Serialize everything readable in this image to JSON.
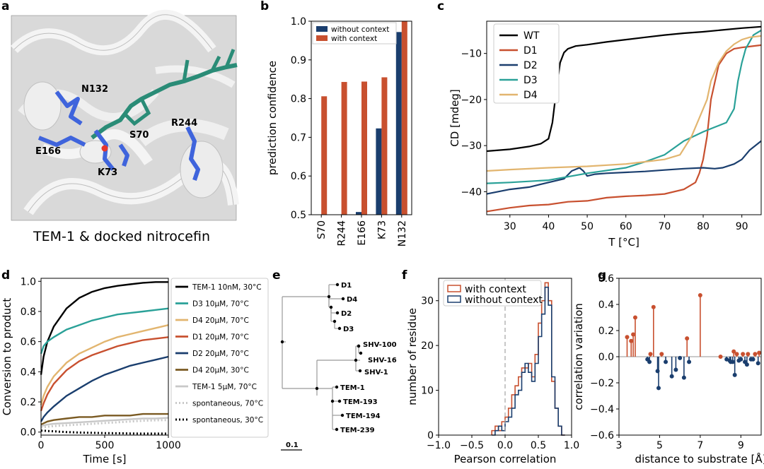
{
  "colors": {
    "blue": "#1a3e6e",
    "red": "#c8502f",
    "teal": "#2aa198",
    "tan": "#e2b56f",
    "brown": "#7a5a22",
    "lightgray": "#c8c8c8",
    "black": "#000000",
    "structure_blue": "#3f64dc",
    "structure_teal": "#2a8c77"
  },
  "panels": {
    "a": {
      "label": "a",
      "caption": "TEM-1 & docked nitrocefin",
      "residue_labels": [
        "N132",
        "R244",
        "S70",
        "E166",
        "K73"
      ],
      "image_description": "protein-structure-render"
    },
    "b": {
      "label": "b"
    },
    "c": {
      "label": "c"
    },
    "d": {
      "label": "d"
    },
    "e": {
      "label": "e"
    },
    "f": {
      "label": "f"
    },
    "g": {
      "label": "g"
    }
  },
  "chart_data": [
    {
      "panel": "b",
      "type": "bar",
      "categories": [
        "S70",
        "R244",
        "E166",
        "K73",
        "N132"
      ],
      "series": [
        {
          "name": "without context",
          "color": "#1a3e6e",
          "values": [
            0.5,
            0.5,
            0.507,
            0.723,
            0.972
          ]
        },
        {
          "name": "with context",
          "color": "#c8502f",
          "values": [
            0.806,
            0.843,
            0.844,
            0.855,
            1.0
          ]
        }
      ],
      "xlabel": "",
      "ylabel": "prediction confidence",
      "ylim": [
        0.5,
        1.0
      ],
      "yticks": [
        0.5,
        0.6,
        0.7,
        0.8,
        0.9,
        1.0
      ],
      "yticklabels": [
        "0.5",
        "0.6",
        "0.7",
        "0.8",
        "0.9",
        "1.0"
      ],
      "legend": "top-left"
    },
    {
      "panel": "c",
      "type": "line",
      "xlabel": "T [°C]",
      "ylabel": "CD [mdeg]",
      "xlim": [
        24,
        95
      ],
      "ylim": [
        -45,
        -3
      ],
      "xticks": [
        30,
        40,
        50,
        60,
        70,
        80,
        90
      ],
      "yticks": [
        -40,
        -30,
        -20,
        -10
      ],
      "legend": "top-left",
      "series": [
        {
          "name": "WT",
          "color": "#000000",
          "x": [
            24,
            30,
            35,
            38,
            40,
            41,
            42,
            43,
            44,
            45,
            47,
            50,
            55,
            60,
            65,
            70,
            75,
            80,
            85,
            90,
            95
          ],
          "y": [
            -31.2,
            -30.8,
            -30.2,
            -29.6,
            -28.5,
            -25,
            -18,
            -12,
            -9.8,
            -9,
            -8.4,
            -8.1,
            -7.5,
            -7,
            -6.5,
            -6,
            -5.6,
            -5.3,
            -4.9,
            -4.5,
            -4.2
          ]
        },
        {
          "name": "D1",
          "color": "#c8502f",
          "x": [
            24,
            30,
            35,
            40,
            45,
            50,
            55,
            60,
            65,
            70,
            75,
            78,
            79,
            80,
            81,
            82,
            84,
            86,
            88,
            90,
            92,
            95
          ],
          "y": [
            -44.3,
            -43.5,
            -43,
            -42.8,
            -42.2,
            -42,
            -41.3,
            -41,
            -40.8,
            -40.5,
            -39.5,
            -38,
            -36,
            -33,
            -28,
            -20,
            -12.5,
            -10,
            -9,
            -8.7,
            -8.5,
            -8.2
          ]
        },
        {
          "name": "D2",
          "color": "#1a3e6e",
          "x": [
            24,
            30,
            35,
            40,
            44,
            46,
            48,
            49,
            50,
            52,
            55,
            60,
            65,
            70,
            75,
            80,
            83,
            85,
            88,
            90,
            92,
            95
          ],
          "y": [
            -40.5,
            -39.5,
            -39,
            -38,
            -37.2,
            -35.5,
            -34.8,
            -35.5,
            -36.6,
            -36.2,
            -36,
            -35.8,
            -35.6,
            -35.3,
            -35,
            -34.8,
            -35,
            -34.8,
            -34,
            -33,
            -31,
            -29
          ]
        },
        {
          "name": "D3",
          "color": "#2aa198",
          "x": [
            24,
            30,
            40,
            50,
            60,
            65,
            70,
            75,
            80,
            83,
            86,
            88,
            89,
            90,
            91,
            93,
            95
          ],
          "y": [
            -38.2,
            -38,
            -37.5,
            -36,
            -34.8,
            -33.5,
            -32,
            -29,
            -27,
            -26,
            -25,
            -22,
            -16,
            -12,
            -9,
            -6,
            -5
          ]
        },
        {
          "name": "D4",
          "color": "#e2b56f",
          "x": [
            24,
            30,
            40,
            50,
            60,
            65,
            70,
            74,
            77,
            79,
            81,
            82,
            84,
            86,
            88,
            90,
            92,
            95
          ],
          "y": [
            -35.5,
            -35.2,
            -34.8,
            -34.5,
            -34,
            -33.5,
            -33,
            -32,
            -28,
            -24,
            -20,
            -16,
            -12,
            -9.5,
            -8,
            -7,
            -6.5,
            -6.2
          ]
        }
      ]
    },
    {
      "panel": "d",
      "type": "line",
      "xlabel": "Time [s]",
      "ylabel": "Conversion to product",
      "xlim": [
        0,
        1000
      ],
      "ylim": [
        -0.02,
        1.02
      ],
      "xticks": [
        0,
        500,
        1000
      ],
      "yticks": [
        0.0,
        0.2,
        0.4,
        0.6,
        0.8,
        1.0
      ],
      "yticklabels": [
        "0.0",
        "0.2",
        "0.4",
        "0.6",
        "0.8",
        "1.0"
      ],
      "legend": "right-outside",
      "series": [
        {
          "name": "TEM-1 10nM, 30°C",
          "color": "#000000",
          "style": "solid",
          "x": [
            0,
            20,
            50,
            100,
            200,
            300,
            400,
            500,
            600,
            700,
            800,
            900,
            1000
          ],
          "y": [
            0.38,
            0.5,
            0.6,
            0.7,
            0.82,
            0.89,
            0.93,
            0.955,
            0.97,
            0.98,
            0.99,
            0.995,
            0.995
          ]
        },
        {
          "name": "D3 10μM, 70°C",
          "color": "#2aa198",
          "style": "solid",
          "x": [
            0,
            20,
            50,
            100,
            200,
            300,
            400,
            500,
            600,
            700,
            800,
            900,
            1000
          ],
          "y": [
            0.52,
            0.57,
            0.6,
            0.63,
            0.68,
            0.71,
            0.74,
            0.76,
            0.78,
            0.79,
            0.8,
            0.81,
            0.82
          ]
        },
        {
          "name": "D4 20μM, 70°C",
          "color": "#e2b56f",
          "style": "solid",
          "x": [
            0,
            20,
            50,
            100,
            200,
            300,
            400,
            500,
            600,
            700,
            800,
            900,
            1000
          ],
          "y": [
            0.18,
            0.24,
            0.3,
            0.37,
            0.46,
            0.52,
            0.56,
            0.6,
            0.63,
            0.65,
            0.67,
            0.69,
            0.71
          ]
        },
        {
          "name": "D1 20μM, 70°C",
          "color": "#c8502f",
          "style": "solid",
          "x": [
            0,
            20,
            50,
            100,
            200,
            300,
            400,
            500,
            600,
            700,
            800,
            900,
            1000
          ],
          "y": [
            0.14,
            0.19,
            0.25,
            0.32,
            0.41,
            0.47,
            0.51,
            0.54,
            0.57,
            0.59,
            0.61,
            0.62,
            0.63
          ]
        },
        {
          "name": "D2 20μM, 70°C",
          "color": "#1a3e6e",
          "style": "solid",
          "x": [
            0,
            20,
            50,
            100,
            200,
            300,
            400,
            500,
            600,
            700,
            800,
            900,
            1000
          ],
          "y": [
            0.07,
            0.1,
            0.13,
            0.17,
            0.24,
            0.29,
            0.34,
            0.38,
            0.41,
            0.44,
            0.46,
            0.48,
            0.5
          ]
        },
        {
          "name": "D4 20μM, 30°C",
          "color": "#7a5a22",
          "style": "solid",
          "x": [
            0,
            50,
            100,
            200,
            300,
            400,
            500,
            600,
            700,
            800,
            900,
            1000
          ],
          "y": [
            0.05,
            0.07,
            0.08,
            0.09,
            0.1,
            0.1,
            0.11,
            0.11,
            0.11,
            0.12,
            0.12,
            0.12
          ]
        },
        {
          "name": "TEM-1 5μM, 70°C",
          "color": "#c8c8c8",
          "style": "solid",
          "x": [
            0,
            50,
            100,
            200,
            300,
            400,
            500,
            600,
            700,
            800,
            900,
            1000
          ],
          "y": [
            0.04,
            0.05,
            0.055,
            0.06,
            0.065,
            0.07,
            0.075,
            0.08,
            0.085,
            0.09,
            0.09,
            0.095
          ]
        },
        {
          "name": "spontaneous, 70°C",
          "color": "#c8c8c8",
          "style": "dotted",
          "x": [
            0,
            100,
            200,
            300,
            400,
            500,
            600,
            700,
            800,
            900,
            1000
          ],
          "y": [
            0.03,
            0.04,
            0.045,
            0.05,
            0.055,
            0.06,
            0.065,
            0.07,
            0.075,
            0.078,
            0.08
          ]
        },
        {
          "name": "spontaneous, 30°C",
          "color": "#000000",
          "style": "dotted",
          "x": [
            0,
            100,
            200,
            300,
            400,
            500,
            600,
            700,
            800,
            900,
            1000
          ],
          "y": [
            0.01,
            0.005,
            0.0,
            -0.003,
            -0.005,
            -0.007,
            -0.008,
            -0.009,
            -0.01,
            -0.01,
            -0.01
          ]
        }
      ]
    },
    {
      "panel": "e",
      "type": "tree",
      "leaves": [
        "D1",
        "D4",
        "D2",
        "D3",
        "SHV-100",
        "SHV-16",
        "SHV-1",
        "TEM-1",
        "TEM-193",
        "TEM-194",
        "TEM-239"
      ],
      "scale_label": "0.1"
    },
    {
      "panel": "f",
      "type": "histogram",
      "xlabel": "Pearson correlation",
      "ylabel": "number of residue",
      "xlim": [
        -1.0,
        1.0
      ],
      "ylim": [
        0,
        35
      ],
      "xticks": [
        -1.0,
        -0.5,
        0.0,
        0.5,
        1.0
      ],
      "xticklabels": [
        "−1.0",
        "−0.5",
        "0.0",
        "0.5",
        "1.0"
      ],
      "yticks": [
        0,
        10,
        20,
        30
      ],
      "legend": "top-left",
      "bin_edges": [
        -0.2,
        -0.15,
        -0.1,
        -0.05,
        0.0,
        0.05,
        0.1,
        0.15,
        0.2,
        0.25,
        0.3,
        0.35,
        0.4,
        0.45,
        0.5,
        0.55,
        0.6,
        0.65,
        0.7,
        0.75,
        0.8,
        0.85,
        0.9
      ],
      "series": [
        {
          "name": "with context",
          "color": "#c8502f",
          "counts": [
            1,
            2,
            1,
            3,
            4,
            6,
            9,
            11,
            13,
            15,
            15,
            16,
            13,
            18,
            25,
            30,
            34,
            30,
            12,
            6,
            2,
            0
          ]
        },
        {
          "name": "without context",
          "color": "#1a3e6e",
          "counts": [
            0,
            1,
            2,
            1,
            3,
            4,
            6,
            9,
            10,
            14,
            16,
            14,
            12,
            16,
            22,
            27,
            33,
            29,
            13,
            6,
            2,
            0
          ]
        }
      ],
      "vline": 0.0
    },
    {
      "panel": "g",
      "type": "stem",
      "xlabel": "distance to substrate [Å]",
      "ylabel": "correlation variation",
      "xlim": [
        3,
        10
      ],
      "ylim": [
        -0.6,
        0.6
      ],
      "xticks": [
        3,
        5,
        7,
        9
      ],
      "yticks": [
        -0.6,
        -0.4,
        -0.2,
        0.0,
        0.2,
        0.4,
        0.6
      ],
      "yticklabels": [
        "−0.6",
        "−0.4",
        "−0.2",
        "0.0",
        "0.2",
        "0.4",
        "0.6"
      ],
      "points": [
        {
          "x": 3.4,
          "y": 0.15
        },
        {
          "x": 3.6,
          "y": 0.12
        },
        {
          "x": 3.7,
          "y": 0.17
        },
        {
          "x": 3.8,
          "y": 0.3
        },
        {
          "x": 4.4,
          "y": -0.02
        },
        {
          "x": 4.5,
          "y": -0.04
        },
        {
          "x": 4.55,
          "y": 0.02
        },
        {
          "x": 4.7,
          "y": 0.38
        },
        {
          "x": 4.9,
          "y": -0.11
        },
        {
          "x": 4.95,
          "y": -0.24
        },
        {
          "x": 5.1,
          "y": 0.02
        },
        {
          "x": 5.3,
          "y": -0.04
        },
        {
          "x": 5.6,
          "y": -0.15
        },
        {
          "x": 5.8,
          "y": -0.1
        },
        {
          "x": 6.0,
          "y": -0.01
        },
        {
          "x": 6.2,
          "y": -0.16
        },
        {
          "x": 6.35,
          "y": 0.14
        },
        {
          "x": 6.45,
          "y": -0.04
        },
        {
          "x": 7.0,
          "y": 0.47
        },
        {
          "x": 8.0,
          "y": 0.0
        },
        {
          "x": 8.3,
          "y": -0.02
        },
        {
          "x": 8.45,
          "y": -0.03
        },
        {
          "x": 8.5,
          "y": -0.04
        },
        {
          "x": 8.6,
          "y": -0.04
        },
        {
          "x": 8.65,
          "y": 0.04
        },
        {
          "x": 8.7,
          "y": -0.14
        },
        {
          "x": 8.8,
          "y": 0.02
        },
        {
          "x": 8.9,
          "y": -0.03
        },
        {
          "x": 9.0,
          "y": -0.02
        },
        {
          "x": 9.1,
          "y": 0.02
        },
        {
          "x": 9.2,
          "y": -0.04
        },
        {
          "x": 9.3,
          "y": -0.06
        },
        {
          "x": 9.35,
          "y": 0.02
        },
        {
          "x": 9.5,
          "y": -0.02
        },
        {
          "x": 9.6,
          "y": -0.02
        },
        {
          "x": 9.7,
          "y": 0.02
        },
        {
          "x": 9.85,
          "y": -0.05
        },
        {
          "x": 9.9,
          "y": 0.03
        }
      ]
    }
  ]
}
